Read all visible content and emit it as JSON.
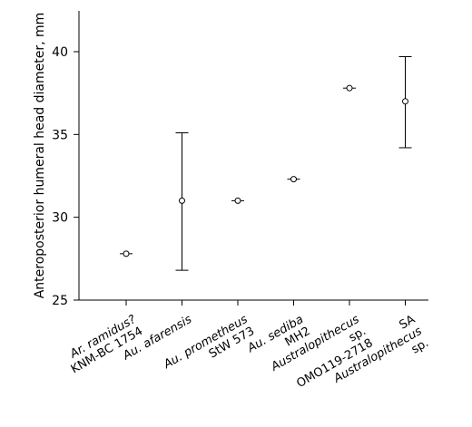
{
  "chart_data": {
    "type": "scatter",
    "ylabel": "Anteroposterior  humeral head diameter, mm",
    "xlabel": "",
    "ylim": [
      25,
      42.5
    ],
    "yticks": [
      25,
      30,
      35,
      40
    ],
    "grid": false,
    "categories": [
      {
        "lines": [
          {
            "text": "Ar. ramidus?",
            "italic": true
          },
          {
            "text": "KNM-BC 1754",
            "italic": false
          }
        ]
      },
      {
        "lines": [
          {
            "text": "Au. afarensis",
            "italic": true
          }
        ]
      },
      {
        "lines": [
          {
            "text": "Au. prometheus",
            "italic": true
          },
          {
            "text": "StW 573",
            "italic": false
          }
        ]
      },
      {
        "lines": [
          {
            "text": "Au. sediba",
            "italic": true
          },
          {
            "text": "MH2",
            "italic": false
          }
        ]
      },
      {
        "lines": [
          {
            "text": "Australopithecus",
            "italic": true
          },
          {
            "text": "sp.",
            "italic": false
          },
          {
            "text": "OMO119-2718",
            "italic": false
          }
        ]
      },
      {
        "lines": [
          {
            "text": "SA",
            "italic": false
          },
          {
            "text": "Australopithecus",
            "italic": true
          },
          {
            "text": "sp.",
            "italic": false
          }
        ]
      }
    ],
    "values": [
      27.8,
      31.0,
      31.0,
      32.3,
      37.8,
      37.0
    ],
    "error_low": [
      27.8,
      26.8,
      31.0,
      32.3,
      37.8,
      34.2
    ],
    "error_high": [
      27.8,
      35.1,
      31.0,
      32.3,
      37.8,
      39.7
    ]
  }
}
